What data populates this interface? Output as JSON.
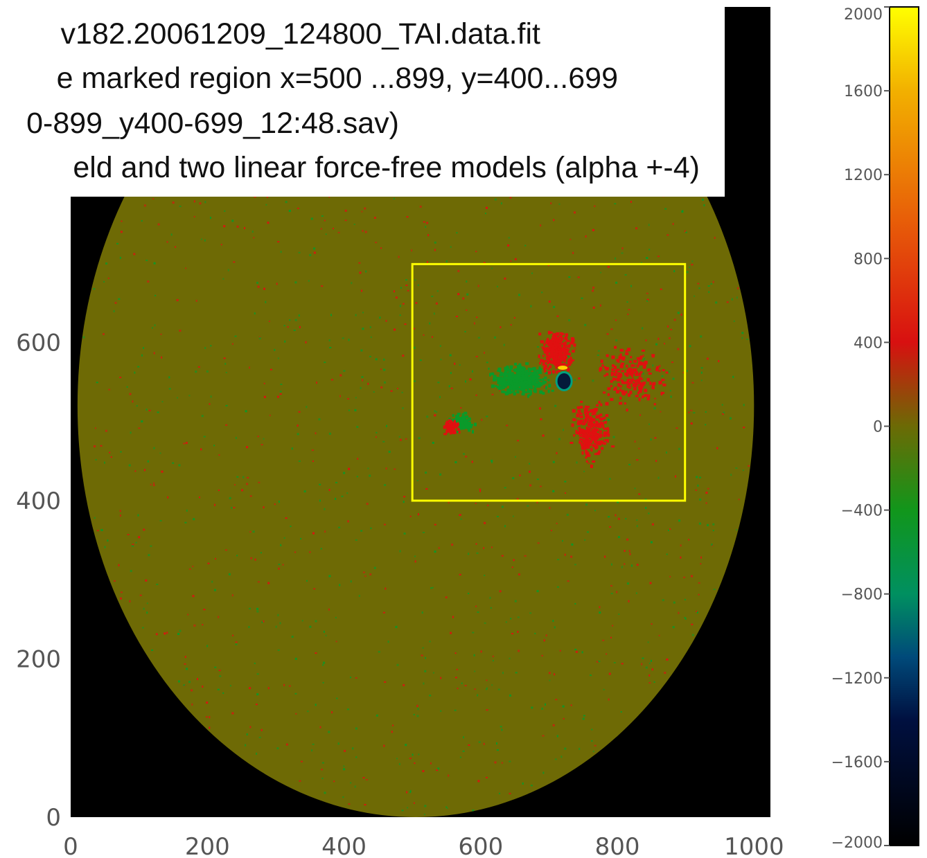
{
  "caption": {
    "lines": [
      "v182.20061209_124800_TAI.data.fit",
      "e marked region x=500 ...899, y=400...699",
      "0-899_y400-699_12:48.sav)",
      "eld and two linear force-free models (alpha +-4)"
    ]
  },
  "chart_data": [
    {
      "type": "heatmap",
      "x_ticks": [
        "0",
        "200",
        "400",
        "600",
        "800",
        "1000"
      ],
      "y_ticks": [
        "0",
        "200",
        "400",
        "600"
      ],
      "xlim": [
        0,
        1024
      ],
      "ylim": [
        0,
        1024
      ],
      "region_box": {
        "x": [
          500,
          899
        ],
        "y": [
          400,
          699
        ]
      },
      "disk": {
        "center_x": 505,
        "center_y": 520,
        "radius_x": 495,
        "radius_y": 520
      },
      "colors": {
        "background": "#000000",
        "disk": "#6e6a05",
        "box": "#ffff00",
        "positive": "#e01010",
        "negative": "#0a9a2a"
      }
    },
    {
      "type": "colorbar",
      "tick_labels": [
        "2000",
        "1600",
        "1200",
        "800",
        "400",
        "0",
        "−400",
        "−800",
        "−1200",
        "−1600",
        "−2000"
      ],
      "range": [
        -2000,
        2000
      ],
      "gradient": [
        {
          "value": -2000,
          "color": "#000000"
        },
        {
          "value": -1400,
          "color": "#001040"
        },
        {
          "value": -1100,
          "color": "#004a7a"
        },
        {
          "value": -800,
          "color": "#009060"
        },
        {
          "value": -400,
          "color": "#11961b"
        },
        {
          "value": 0,
          "color": "#6c6a05"
        },
        {
          "value": 400,
          "color": "#d81010"
        },
        {
          "value": 1000,
          "color": "#e86008"
        },
        {
          "value": 1600,
          "color": "#f2b000"
        },
        {
          "value": 2000,
          "color": "#ffff00"
        }
      ]
    }
  ]
}
